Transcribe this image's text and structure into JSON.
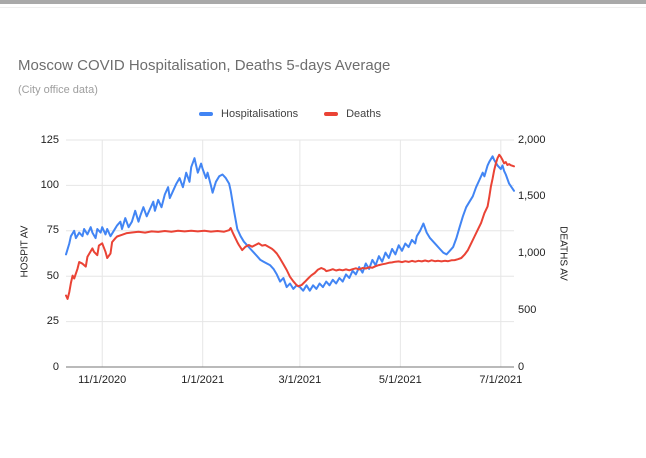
{
  "title": "Moscow COVID Hospitalisation, Deaths 5-days Average",
  "subtitle": "(City office data)",
  "chart_data": {
    "type": "line",
    "title": "Moscow COVID Hospitalisation, Deaths 5-days Average",
    "subtitle": "(City office data)",
    "grid": true,
    "legend_position": "top",
    "x": {
      "start_date": "10/10/2020",
      "end_date": "7/9/2021",
      "range_days": [
        0,
        272
      ],
      "ticks": [
        {
          "label": "11/1/2020",
          "day": 22
        },
        {
          "label": "1/1/2021",
          "day": 83
        },
        {
          "label": "3/1/2021",
          "day": 142
        },
        {
          "label": "5/1/2021",
          "day": 203
        },
        {
          "label": "7/1/2021",
          "day": 264
        }
      ]
    },
    "y_left": {
      "label": "HOSPIT AV",
      "range": [
        0,
        125
      ],
      "ticks": [
        0,
        25,
        50,
        75,
        100,
        125
      ],
      "tick_labels": [
        "0",
        "25",
        "50",
        "75",
        "100",
        "125"
      ]
    },
    "y_right": {
      "label": "DEATHS AV",
      "range": [
        0,
        2000
      ],
      "ticks": [
        0,
        500,
        1000,
        1500,
        2000
      ],
      "tick_labels": [
        "0",
        "500",
        "1,000",
        "1,500",
        "2,000"
      ]
    },
    "series": [
      {
        "name": "Hospitalisations",
        "axis": "left",
        "color": "#4285f4",
        "points": [
          [
            0,
            62
          ],
          [
            2,
            68
          ],
          [
            3,
            72
          ],
          [
            5,
            75
          ],
          [
            6,
            71
          ],
          [
            8,
            74
          ],
          [
            10,
            72
          ],
          [
            11,
            76
          ],
          [
            13,
            73
          ],
          [
            15,
            77
          ],
          [
            16,
            74
          ],
          [
            18,
            71
          ],
          [
            19,
            76
          ],
          [
            21,
            74
          ],
          [
            22,
            77
          ],
          [
            24,
            73
          ],
          [
            25,
            76
          ],
          [
            27,
            72
          ],
          [
            29,
            75
          ],
          [
            31,
            78
          ],
          [
            33,
            80
          ],
          [
            34,
            76
          ],
          [
            36,
            82
          ],
          [
            38,
            77
          ],
          [
            40,
            80
          ],
          [
            42,
            86
          ],
          [
            44,
            80
          ],
          [
            45,
            83
          ],
          [
            47,
            88
          ],
          [
            49,
            83
          ],
          [
            51,
            87
          ],
          [
            53,
            91
          ],
          [
            54,
            86
          ],
          [
            56,
            92
          ],
          [
            58,
            88
          ],
          [
            60,
            95
          ],
          [
            62,
            99
          ],
          [
            63,
            93
          ],
          [
            65,
            97
          ],
          [
            67,
            101
          ],
          [
            69,
            104
          ],
          [
            71,
            99
          ],
          [
            72,
            103
          ],
          [
            73,
            107
          ],
          [
            75,
            102
          ],
          [
            76,
            110
          ],
          [
            78,
            115
          ],
          [
            79,
            111
          ],
          [
            80,
            107
          ],
          [
            82,
            112
          ],
          [
            83,
            109
          ],
          [
            85,
            104
          ],
          [
            86,
            107
          ],
          [
            88,
            100
          ],
          [
            89,
            96
          ],
          [
            91,
            102
          ],
          [
            93,
            105
          ],
          [
            95,
            106
          ],
          [
            97,
            104
          ],
          [
            99,
            101
          ],
          [
            100,
            97
          ],
          [
            102,
            86
          ],
          [
            104,
            76
          ],
          [
            106,
            72
          ],
          [
            108,
            69
          ],
          [
            110,
            67
          ],
          [
            112,
            65
          ],
          [
            114,
            63
          ],
          [
            116,
            61
          ],
          [
            118,
            59
          ],
          [
            120,
            58
          ],
          [
            122,
            57
          ],
          [
            124,
            56
          ],
          [
            126,
            54
          ],
          [
            128,
            51
          ],
          [
            130,
            47
          ],
          [
            132,
            49
          ],
          [
            134,
            44
          ],
          [
            136,
            46
          ],
          [
            138,
            43
          ],
          [
            140,
            45
          ],
          [
            142,
            44
          ],
          [
            144,
            42
          ],
          [
            146,
            45
          ],
          [
            148,
            42
          ],
          [
            150,
            45
          ],
          [
            152,
            43
          ],
          [
            154,
            46
          ],
          [
            156,
            44
          ],
          [
            158,
            47
          ],
          [
            160,
            45
          ],
          [
            162,
            48
          ],
          [
            164,
            46
          ],
          [
            166,
            49
          ],
          [
            168,
            47
          ],
          [
            170,
            51
          ],
          [
            172,
            49
          ],
          [
            174,
            53
          ],
          [
            176,
            51
          ],
          [
            178,
            55
          ],
          [
            180,
            52
          ],
          [
            182,
            57
          ],
          [
            184,
            54
          ],
          [
            186,
            59
          ],
          [
            188,
            56
          ],
          [
            190,
            61
          ],
          [
            192,
            58
          ],
          [
            194,
            63
          ],
          [
            196,
            60
          ],
          [
            198,
            65
          ],
          [
            200,
            62
          ],
          [
            202,
            67
          ],
          [
            204,
            64
          ],
          [
            206,
            68
          ],
          [
            208,
            66
          ],
          [
            210,
            70
          ],
          [
            212,
            68
          ],
          [
            213,
            72
          ],
          [
            215,
            75
          ],
          [
            217,
            79
          ],
          [
            219,
            74
          ],
          [
            221,
            71
          ],
          [
            223,
            69
          ],
          [
            225,
            67
          ],
          [
            227,
            65
          ],
          [
            229,
            63
          ],
          [
            231,
            62
          ],
          [
            233,
            64
          ],
          [
            235,
            66
          ],
          [
            237,
            71
          ],
          [
            239,
            77
          ],
          [
            241,
            83
          ],
          [
            243,
            88
          ],
          [
            245,
            91
          ],
          [
            247,
            94
          ],
          [
            249,
            99
          ],
          [
            251,
            103
          ],
          [
            253,
            107
          ],
          [
            254,
            105
          ],
          [
            256,
            111
          ],
          [
            257,
            113
          ],
          [
            259,
            116
          ],
          [
            260,
            114
          ],
          [
            262,
            111
          ],
          [
            264,
            109
          ],
          [
            265,
            111
          ],
          [
            266,
            108
          ],
          [
            267,
            106
          ],
          [
            269,
            101
          ],
          [
            272,
            97
          ]
        ]
      },
      {
        "name": "Deaths",
        "axis": "right",
        "color": "#ea4335",
        "points": [
          [
            0,
            630
          ],
          [
            1,
            600
          ],
          [
            2,
            660
          ],
          [
            3,
            740
          ],
          [
            4,
            805
          ],
          [
            5,
            780
          ],
          [
            7,
            865
          ],
          [
            8,
            925
          ],
          [
            10,
            910
          ],
          [
            12,
            885
          ],
          [
            13,
            970
          ],
          [
            15,
            1020
          ],
          [
            16,
            1045
          ],
          [
            17,
            1015
          ],
          [
            19,
            985
          ],
          [
            20,
            1070
          ],
          [
            22,
            1090
          ],
          [
            24,
            1015
          ],
          [
            25,
            960
          ],
          [
            27,
            1000
          ],
          [
            28,
            1100
          ],
          [
            30,
            1135
          ],
          [
            31,
            1150
          ],
          [
            34,
            1165
          ],
          [
            37,
            1180
          ],
          [
            40,
            1185
          ],
          [
            44,
            1192
          ],
          [
            48,
            1184
          ],
          [
            52,
            1195
          ],
          [
            56,
            1190
          ],
          [
            60,
            1198
          ],
          [
            64,
            1192
          ],
          [
            68,
            1200
          ],
          [
            72,
            1195
          ],
          [
            76,
            1200
          ],
          [
            80,
            1195
          ],
          [
            84,
            1200
          ],
          [
            88,
            1193
          ],
          [
            92,
            1198
          ],
          [
            96,
            1192
          ],
          [
            99,
            1205
          ],
          [
            100,
            1225
          ],
          [
            101,
            1190
          ],
          [
            102,
            1160
          ],
          [
            104,
            1100
          ],
          [
            105,
            1075
          ],
          [
            107,
            1030
          ],
          [
            109,
            1060
          ],
          [
            111,
            1075
          ],
          [
            113,
            1060
          ],
          [
            115,
            1075
          ],
          [
            117,
            1090
          ],
          [
            119,
            1070
          ],
          [
            121,
            1075
          ],
          [
            123,
            1058
          ],
          [
            125,
            1042
          ],
          [
            126,
            1030
          ],
          [
            128,
            1000
          ],
          [
            130,
            955
          ],
          [
            132,
            905
          ],
          [
            134,
            855
          ],
          [
            136,
            795
          ],
          [
            138,
            755
          ],
          [
            140,
            722
          ],
          [
            141,
            712
          ],
          [
            143,
            722
          ],
          [
            145,
            750
          ],
          [
            147,
            780
          ],
          [
            149,
            808
          ],
          [
            151,
            828
          ],
          [
            153,
            858
          ],
          [
            155,
            872
          ],
          [
            157,
            860
          ],
          [
            158,
            845
          ],
          [
            160,
            852
          ],
          [
            162,
            862
          ],
          [
            164,
            850
          ],
          [
            166,
            858
          ],
          [
            168,
            852
          ],
          [
            170,
            860
          ],
          [
            172,
            852
          ],
          [
            174,
            862
          ],
          [
            176,
            870
          ],
          [
            178,
            860
          ],
          [
            180,
            872
          ],
          [
            182,
            868
          ],
          [
            184,
            878
          ],
          [
            186,
            875
          ],
          [
            188,
            888
          ],
          [
            190,
            898
          ],
          [
            192,
            905
          ],
          [
            194,
            910
          ],
          [
            196,
            918
          ],
          [
            198,
            922
          ],
          [
            200,
            928
          ],
          [
            202,
            930
          ],
          [
            204,
            924
          ],
          [
            206,
            932
          ],
          [
            208,
            926
          ],
          [
            210,
            935
          ],
          [
            212,
            928
          ],
          [
            214,
            936
          ],
          [
            216,
            930
          ],
          [
            218,
            938
          ],
          [
            220,
            930
          ],
          [
            222,
            940
          ],
          [
            224,
            932
          ],
          [
            226,
            936
          ],
          [
            228,
            930
          ],
          [
            230,
            936
          ],
          [
            232,
            932
          ],
          [
            234,
            940
          ],
          [
            236,
            942
          ],
          [
            238,
            950
          ],
          [
            240,
            960
          ],
          [
            242,
            990
          ],
          [
            244,
            1030
          ],
          [
            246,
            1090
          ],
          [
            248,
            1150
          ],
          [
            250,
            1210
          ],
          [
            252,
            1270
          ],
          [
            254,
            1355
          ],
          [
            256,
            1415
          ],
          [
            257,
            1500
          ],
          [
            258,
            1590
          ],
          [
            259,
            1660
          ],
          [
            260,
            1735
          ],
          [
            261,
            1795
          ],
          [
            262,
            1840
          ],
          [
            263,
            1870
          ],
          [
            264,
            1852
          ],
          [
            265,
            1825
          ],
          [
            266,
            1795
          ],
          [
            267,
            1805
          ],
          [
            268,
            1780
          ],
          [
            269,
            1788
          ],
          [
            270,
            1778
          ],
          [
            272,
            1768
          ]
        ]
      }
    ]
  }
}
